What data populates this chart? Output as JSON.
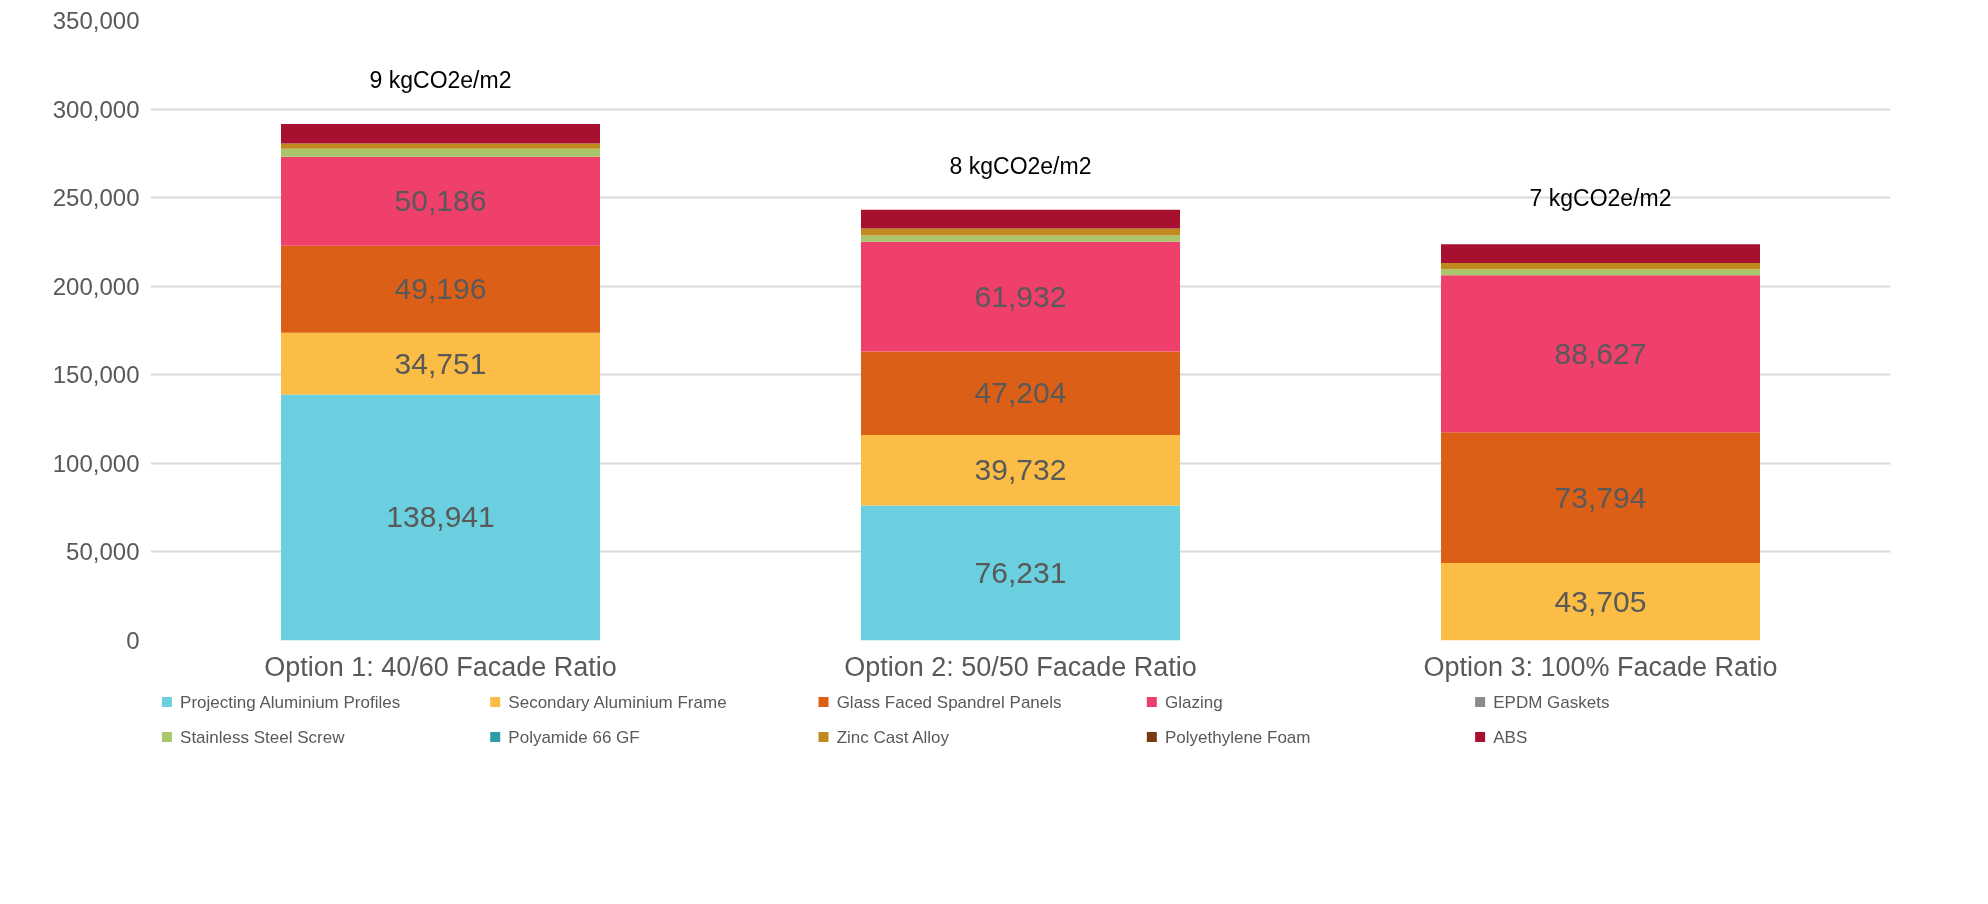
{
  "chart_data": {
    "type": "bar",
    "stacked": true,
    "categories": [
      "Option 1: 40/60 Facade Ratio",
      "Option 2: 50/50 Facade Ratio",
      "Option 3: 100% Facade Ratio"
    ],
    "series": [
      {
        "name": "Projecting Aluminium Profiles",
        "color": "#6ad0e0",
        "values": [
          138941,
          76231,
          0
        ],
        "value_labels": [
          "138,941",
          "76,231",
          null
        ]
      },
      {
        "name": "Secondary Aluminium Frame",
        "color": "#fbbd45",
        "values": [
          34751,
          39732,
          43705
        ],
        "value_labels": [
          "34,751",
          "39,732",
          "43,705"
        ]
      },
      {
        "name": "Glass Faced Spandrel Panels",
        "color": "#dc5f18",
        "values": [
          49196,
          47204,
          73794
        ],
        "value_labels": [
          "49,196",
          "47,204",
          "73,794"
        ]
      },
      {
        "name": "Glazing",
        "color": "#ef3f6b",
        "values": [
          50186,
          61932,
          88627
        ],
        "value_labels": [
          "50,186",
          "61,932",
          "88,627"
        ]
      },
      {
        "name": "EPDM Gaskets",
        "color": "#8c8c8c",
        "values": [
          null,
          null,
          null
        ]
      },
      {
        "name": "Stainless Steel Screw",
        "color": "#a9c66a",
        "values": [
          4500,
          3500,
          3500
        ]
      },
      {
        "name": "Polyamide 66 GF",
        "color": "#2a9da8",
        "values": [
          null,
          null,
          null
        ]
      },
      {
        "name": "Zinc Cast Alloy",
        "color": "#c08a1e",
        "values": [
          3000,
          4000,
          3500
        ]
      },
      {
        "name": "Polyethylene Foam",
        "color": "#7a3a12",
        "values": [
          null,
          null,
          null
        ]
      },
      {
        "name": "ABS",
        "color": "#a8102f",
        "values": [
          11000,
          10500,
          10500
        ]
      }
    ],
    "annotations": [
      {
        "text": "9 kgCO2e/m2",
        "x": "Option 1: 40/60 Facade Ratio",
        "y": 293000
      },
      {
        "text": "8 kgCO2e/m2",
        "x": "Option 2: 50/50 Facade Ratio",
        "y": 245000
      },
      {
        "text": "7 kgCO2e/m2",
        "x": "Option 3: 100% Facade Ratio",
        "y": 226500
      }
    ],
    "ylim": [
      0,
      350000
    ],
    "yticks": [
      {
        "value": 0,
        "label": "0"
      },
      {
        "value": 50000,
        "label": "50,000"
      },
      {
        "value": 100000,
        "label": "100,000"
      },
      {
        "value": 150000,
        "label": "150,000"
      },
      {
        "value": 200000,
        "label": "200,000"
      },
      {
        "value": 250000,
        "label": "250,000"
      },
      {
        "value": 300000,
        "label": "300,000"
      },
      {
        "value": 350000,
        "label": "350,000"
      }
    ],
    "grid": "y",
    "legend": "bottom"
  }
}
